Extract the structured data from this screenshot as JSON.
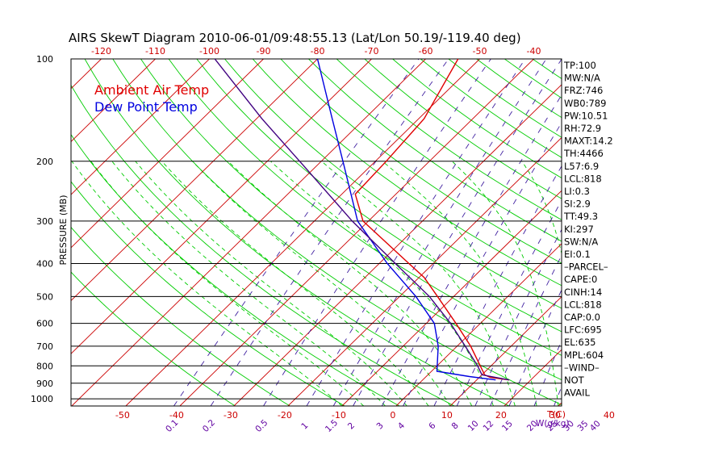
{
  "chart_data": {
    "type": "line",
    "title": "AIRS SkewT Diagram 2010-06-01/09:48:55.13 (Lat/Lon 50.19/-119.40 deg)",
    "ylabel": "PRESSURE (MB)",
    "xlabel_temp": "T(C)",
    "xlabel_mix": "W(g/kg)",
    "y_scale": "log",
    "ylim": [
      1050,
      100
    ],
    "pressure_ticks": [
      100,
      200,
      300,
      400,
      500,
      600,
      700,
      800,
      900,
      1000
    ],
    "bottom_temp_ticks": [
      -50,
      -40,
      -30,
      -20,
      -10,
      0,
      10,
      20,
      30,
      40
    ],
    "top_temp_ticks": [
      -120,
      -110,
      -100,
      -90,
      -80,
      -70,
      -60,
      -50,
      -40
    ],
    "mixing_ratio_labels": [
      "0.1",
      "0.2",
      "0.5",
      "1",
      "1.5",
      "2",
      "3",
      "4",
      "6",
      "8",
      "10",
      "12",
      "15",
      "20",
      "25",
      "30",
      "35",
      "40"
    ],
    "mixing_ratio_values": [
      0.1,
      0.2,
      0.5,
      1,
      1.5,
      2,
      3,
      4,
      6,
      8,
      10,
      12,
      15,
      20,
      25,
      30,
      35,
      40
    ],
    "legend": {
      "placement": "top-left",
      "items": [
        {
          "label": "Ambient Air Temp",
          "color": "#e00000"
        },
        {
          "label": "Dew Point Temp",
          "color": "#0000e0"
        }
      ]
    },
    "series": [
      {
        "name": "Ambient Air Temp",
        "color": "#e00000",
        "points": [
          {
            "p": 880,
            "t": 16.0
          },
          {
            "p": 865,
            "t": 12.0
          },
          {
            "p": 850,
            "t": 10.5
          },
          {
            "p": 800,
            "t": 8.0
          },
          {
            "p": 700,
            "t": 2.5
          },
          {
            "p": 600,
            "t": -4.5
          },
          {
            "p": 500,
            "t": -13.0
          },
          {
            "p": 440,
            "t": -19.0
          },
          {
            "p": 400,
            "t": -24.5
          },
          {
            "p": 300,
            "t": -41.0
          },
          {
            "p": 250,
            "t": -47.5
          },
          {
            "p": 200,
            "t": -48.0
          },
          {
            "p": 150,
            "t": -49.0
          },
          {
            "p": 100,
            "t": -54.0
          }
        ]
      },
      {
        "name": "Dew Point Temp",
        "color": "#0000e0",
        "points": [
          {
            "p": 880,
            "t": 13.5
          },
          {
            "p": 860,
            "t": 8.0
          },
          {
            "p": 830,
            "t": 1.0
          },
          {
            "p": 700,
            "t": -3.5
          },
          {
            "p": 600,
            "t": -8.5
          },
          {
            "p": 500,
            "t": -17.0
          },
          {
            "p": 400,
            "t": -28.5
          },
          {
            "p": 300,
            "t": -42.0
          },
          {
            "p": 200,
            "t": -56.0
          },
          {
            "p": 150,
            "t": -66.0
          },
          {
            "p": 100,
            "t": -80.0
          }
        ]
      },
      {
        "name": "",
        "color": "#400080",
        "points": [
          {
            "p": 880,
            "t": 16.0
          },
          {
            "p": 850,
            "t": 10.0
          },
          {
            "p": 800,
            "t": 7.5
          },
          {
            "p": 700,
            "t": 1.5
          },
          {
            "p": 600,
            "t": -5.5
          },
          {
            "p": 500,
            "t": -14.5
          },
          {
            "p": 400,
            "t": -27.0
          },
          {
            "p": 300,
            "t": -43.0
          },
          {
            "p": 200,
            "t": -64.0
          },
          {
            "p": 150,
            "t": -79.0
          },
          {
            "p": 100,
            "t": -99.0
          }
        ]
      }
    ],
    "indices": [
      "TP:100",
      "MW:N/A",
      "FRZ:746",
      "WB0:789",
      "PW:10.51",
      "RH:72.9",
      "MAXT:14.2",
      "TH:4466",
      "L57:6.9",
      "LCL:818",
      "LI:0.3",
      "SI:2.9",
      "TT:49.3",
      "KI:297",
      "SW:N/A",
      "EI:0.1",
      "–PARCEL–",
      "CAPE:0",
      "CINH:14",
      "LCL:818",
      "CAP:0.0",
      "LFC:695",
      "EL:635",
      "MPL:604",
      "–WIND–",
      "NOT",
      "AVAIL"
    ],
    "colors": {
      "dry_adiabat": "#00cc00",
      "moist_adiabat": "#00cc00",
      "isotherm": "#cc0000",
      "mixing_ratio": "#4020a0",
      "isobar": "#000000",
      "tick_label_temp": "#cc0000",
      "tick_label_mix": "#6000a0"
    }
  }
}
